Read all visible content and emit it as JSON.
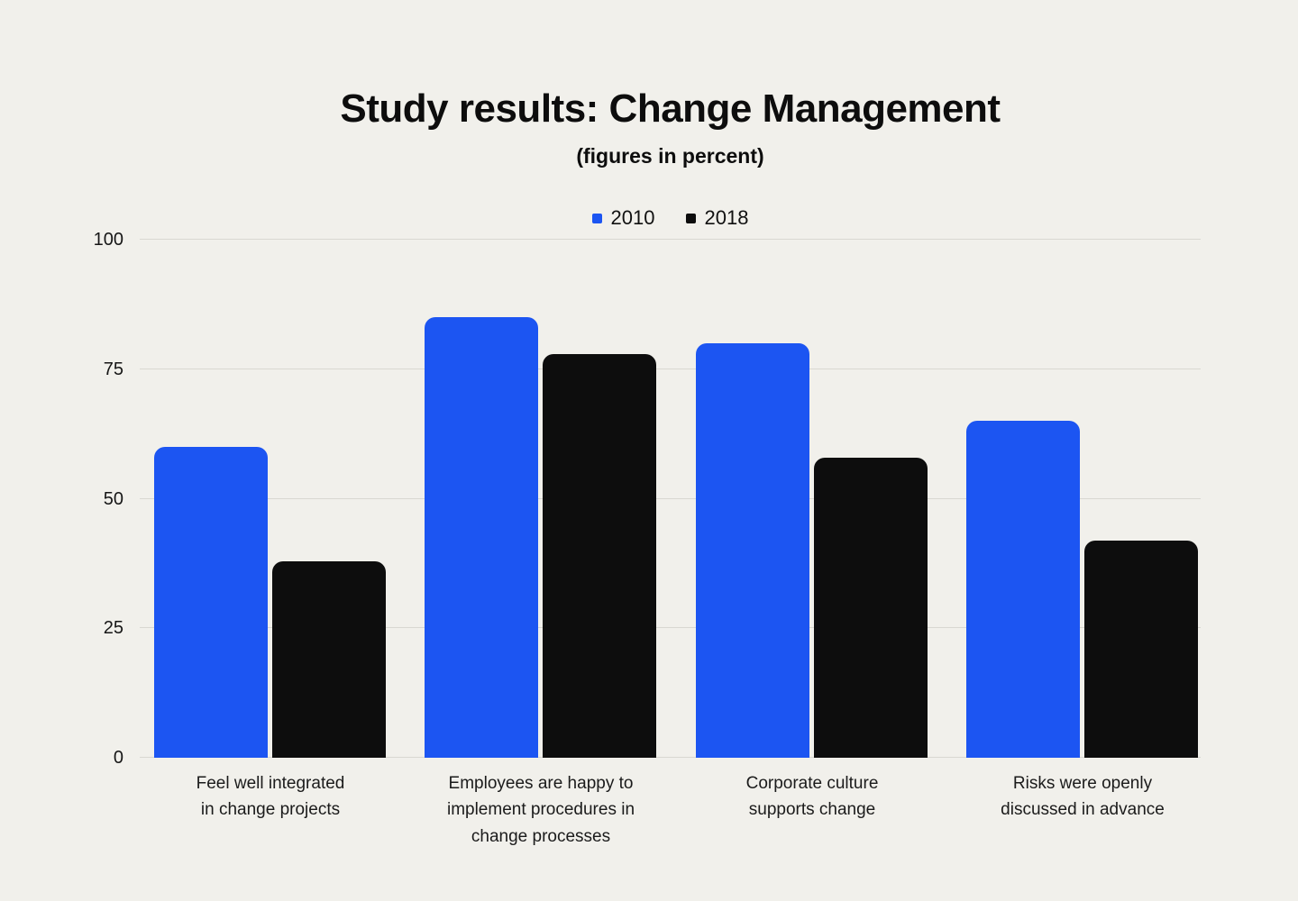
{
  "title": "Study results: Change Management",
  "subtitle": "(figures in percent)",
  "colors": {
    "background": "#f1f0eb",
    "series_2010": "#1c55f2",
    "series_2018": "#0d0d0d",
    "gridline": "#d9d8d1"
  },
  "chart_data": {
    "type": "bar",
    "title": "Study results: Change Management",
    "subtitle": "(figures in percent)",
    "categories": [
      "Feel well integrated\nin change projects",
      "Employees are happy to\nimplement procedures in\nchange processes",
      "Corporate culture\nsupports change",
      "Risks were openly\ndiscussed in advance"
    ],
    "series": [
      {
        "name": "2010",
        "color": "#1c55f2",
        "values": [
          60,
          85,
          80,
          65
        ]
      },
      {
        "name": "2018",
        "color": "#0d0d0d",
        "values": [
          38,
          78,
          58,
          42
        ]
      }
    ],
    "xlabel": "",
    "ylabel": "",
    "ylim": [
      0,
      100
    ],
    "yticks": [
      0,
      25,
      50,
      75,
      100
    ],
    "grid": true,
    "legend_position": "top"
  }
}
